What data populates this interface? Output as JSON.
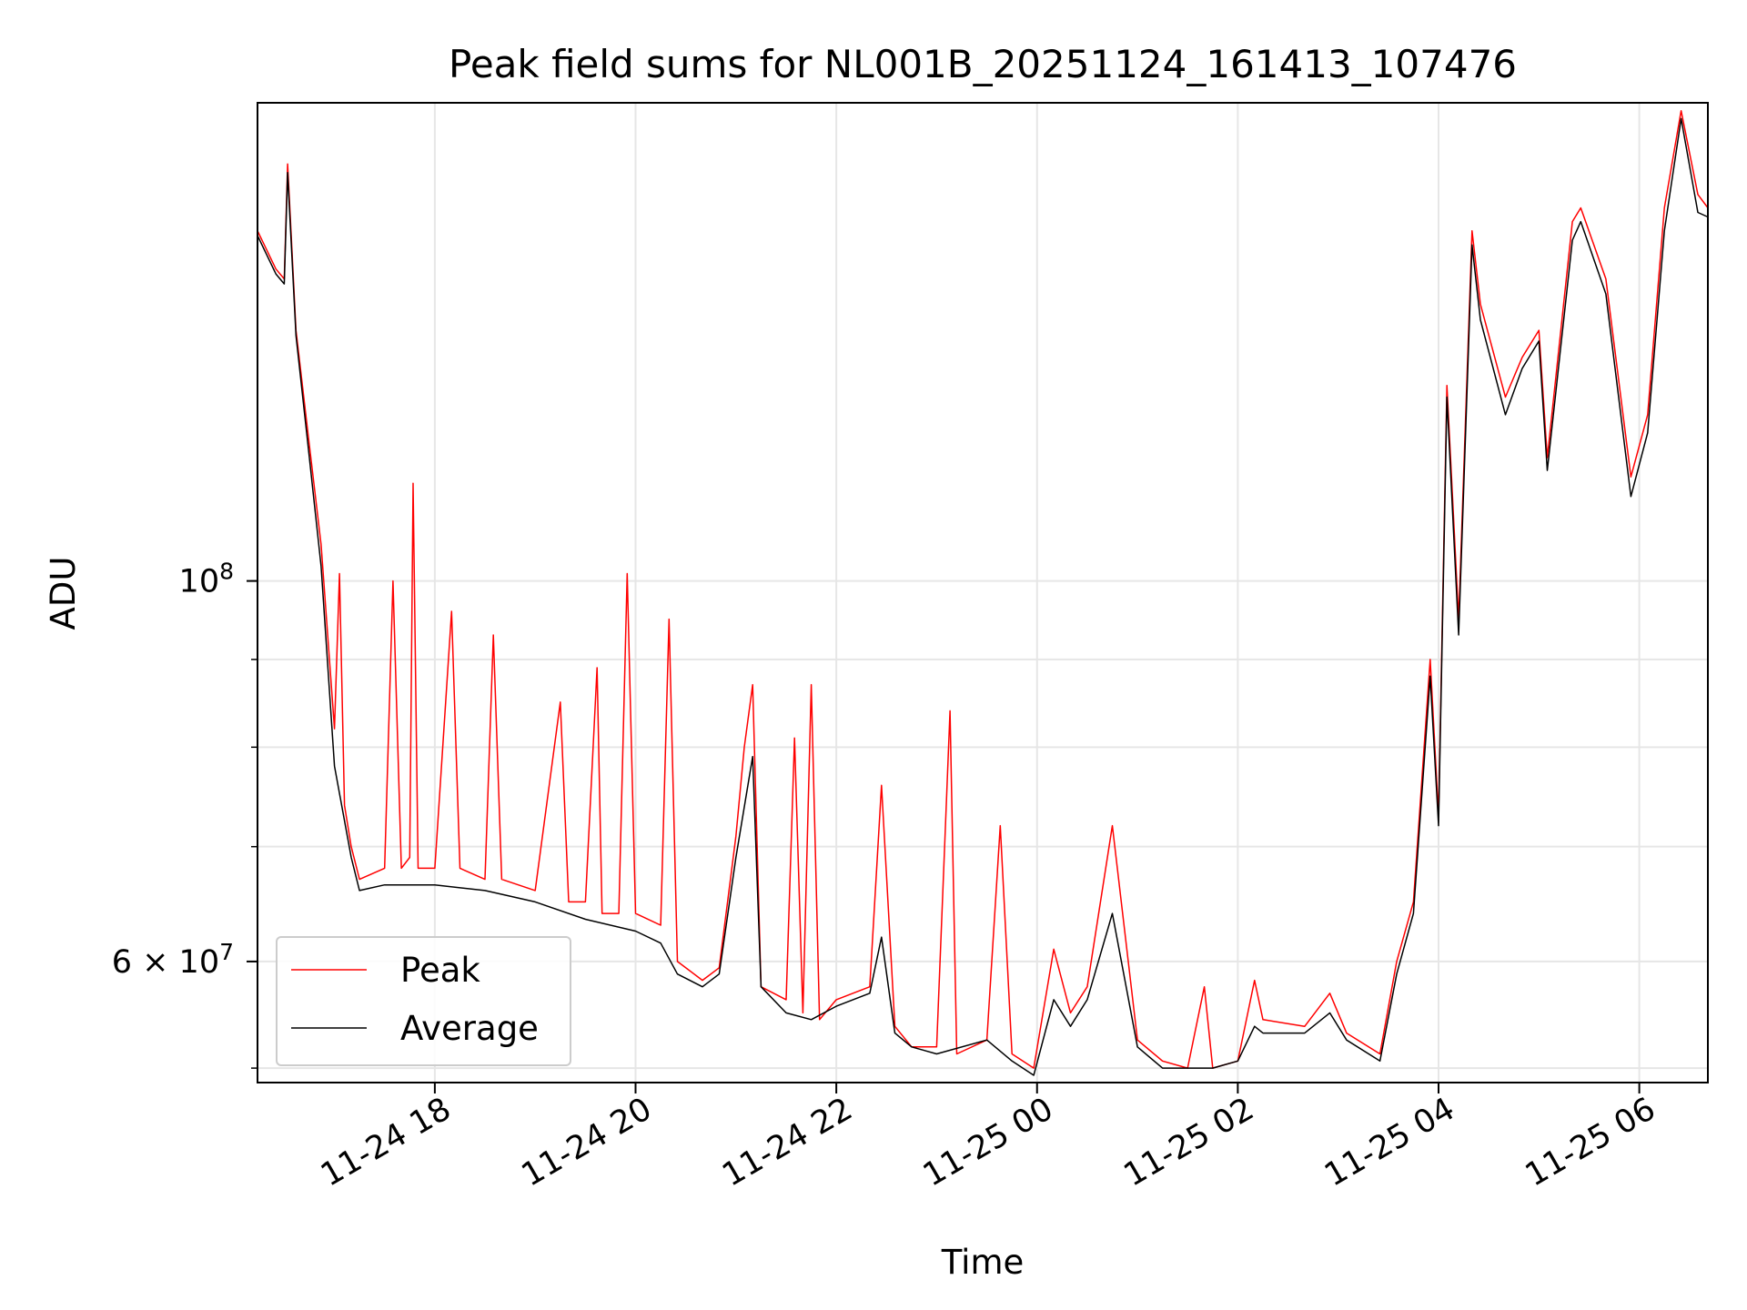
{
  "chart_data": {
    "type": "line",
    "title": "Peak field sums for NL001B_20251124_161413_107476",
    "xlabel": "Time",
    "ylabel": "ADU",
    "y_scale": "log",
    "ylim": [
      51000000,
      190000000
    ],
    "xlim": [
      "2025-11-24 16:14",
      "2025-11-25 06:41"
    ],
    "grid": true,
    "legend_position": "lower-left",
    "x_ticks": [
      {
        "t": "2025-11-24 18:00",
        "label": "11-24 18"
      },
      {
        "t": "2025-11-24 20:00",
        "label": "11-24 20"
      },
      {
        "t": "2025-11-24 22:00",
        "label": "11-24 22"
      },
      {
        "t": "2025-11-25 00:00",
        "label": "11-25 00"
      },
      {
        "t": "2025-11-25 02:00",
        "label": "11-25 02"
      },
      {
        "t": "2025-11-25 04:00",
        "label": "11-25 04"
      },
      {
        "t": "2025-11-25 06:00",
        "label": "11-25 06"
      }
    ],
    "y_major_ticks": [
      {
        "value": 60000000,
        "base": "6 × 10",
        "exp": "7"
      },
      {
        "value": 100000000,
        "base": "10",
        "exp": "8"
      }
    ],
    "y_minor_ticks": [
      52000000,
      60000000,
      70000000,
      80000000,
      90000000,
      100000000
    ],
    "series": [
      {
        "name": "Peak",
        "color": "#ff0000",
        "points": [
          [
            "2025-11-24 16:14",
            160000000
          ],
          [
            "2025-11-24 16:25",
            152000000
          ],
          [
            "2025-11-24 16:30",
            150000000
          ],
          [
            "2025-11-24 16:32",
            175000000
          ],
          [
            "2025-11-24 16:37",
            140000000
          ],
          [
            "2025-11-24 16:45",
            120000000
          ],
          [
            "2025-11-24 16:52",
            105000000
          ],
          [
            "2025-11-24 17:00",
            82000000
          ],
          [
            "2025-11-24 17:03",
            101000000
          ],
          [
            "2025-11-24 17:06",
            74000000
          ],
          [
            "2025-11-24 17:10",
            70000000
          ],
          [
            "2025-11-24 17:15",
            67000000
          ],
          [
            "2025-11-24 17:30",
            68000000
          ],
          [
            "2025-11-24 17:35",
            100000000
          ],
          [
            "2025-11-24 17:40",
            68000000
          ],
          [
            "2025-11-24 17:45",
            69000000
          ],
          [
            "2025-11-24 17:47",
            114000000
          ],
          [
            "2025-11-24 17:50",
            68000000
          ],
          [
            "2025-11-24 18:00",
            68000000
          ],
          [
            "2025-11-24 18:10",
            96000000
          ],
          [
            "2025-11-24 18:15",
            68000000
          ],
          [
            "2025-11-24 18:30",
            67000000
          ],
          [
            "2025-11-24 18:35",
            93000000
          ],
          [
            "2025-11-24 18:40",
            67000000
          ],
          [
            "2025-11-24 19:00",
            66000000
          ],
          [
            "2025-11-24 19:15",
            85000000
          ],
          [
            "2025-11-24 19:20",
            65000000
          ],
          [
            "2025-11-24 19:30",
            65000000
          ],
          [
            "2025-11-24 19:37",
            89000000
          ],
          [
            "2025-11-24 19:40",
            64000000
          ],
          [
            "2025-11-24 19:50",
            64000000
          ],
          [
            "2025-11-24 19:55",
            101000000
          ],
          [
            "2025-11-24 20:00",
            64000000
          ],
          [
            "2025-11-24 20:15",
            63000000
          ],
          [
            "2025-11-24 20:20",
            95000000
          ],
          [
            "2025-11-24 20:25",
            60000000
          ],
          [
            "2025-11-24 20:40",
            58500000
          ],
          [
            "2025-11-24 20:50",
            59500000
          ],
          [
            "2025-11-24 21:00",
            71000000
          ],
          [
            "2025-11-24 21:05",
            80000000
          ],
          [
            "2025-11-24 21:10",
            87000000
          ],
          [
            "2025-11-24 21:15",
            58000000
          ],
          [
            "2025-11-24 21:30",
            57000000
          ],
          [
            "2025-11-24 21:35",
            81000000
          ],
          [
            "2025-11-24 21:40",
            56000000
          ],
          [
            "2025-11-24 21:45",
            87000000
          ],
          [
            "2025-11-24 21:50",
            55500000
          ],
          [
            "2025-11-24 22:00",
            57000000
          ],
          [
            "2025-11-24 22:20",
            58000000
          ],
          [
            "2025-11-24 22:27",
            76000000
          ],
          [
            "2025-11-24 22:35",
            55000000
          ],
          [
            "2025-11-24 22:45",
            53500000
          ],
          [
            "2025-11-24 23:00",
            53500000
          ],
          [
            "2025-11-24 23:08",
            84000000
          ],
          [
            "2025-11-24 23:12",
            53000000
          ],
          [
            "2025-11-24 23:30",
            54000000
          ],
          [
            "2025-11-24 23:38",
            72000000
          ],
          [
            "2025-11-24 23:45",
            53000000
          ],
          [
            "2025-11-24 23:58",
            52000000
          ],
          [
            "2025-11-25 00:10",
            61000000
          ],
          [
            "2025-11-25 00:20",
            56000000
          ],
          [
            "2025-11-25 00:30",
            58000000
          ],
          [
            "2025-11-25 00:45",
            72000000
          ],
          [
            "2025-11-25 01:00",
            54000000
          ],
          [
            "2025-11-25 01:15",
            52500000
          ],
          [
            "2025-11-25 01:30",
            52000000
          ],
          [
            "2025-11-25 01:40",
            58000000
          ],
          [
            "2025-11-25 01:45",
            52000000
          ],
          [
            "2025-11-25 02:00",
            52500000
          ],
          [
            "2025-11-25 02:10",
            58500000
          ],
          [
            "2025-11-25 02:15",
            55500000
          ],
          [
            "2025-11-25 02:40",
            55000000
          ],
          [
            "2025-11-25 02:55",
            57500000
          ],
          [
            "2025-11-25 03:05",
            54500000
          ],
          [
            "2025-11-25 03:25",
            53000000
          ],
          [
            "2025-11-25 03:35",
            60000000
          ],
          [
            "2025-11-25 03:45",
            65000000
          ],
          [
            "2025-11-25 03:55",
            90000000
          ],
          [
            "2025-11-25 04:00",
            73000000
          ],
          [
            "2025-11-25 04:05",
            130000000
          ],
          [
            "2025-11-25 04:12",
            95000000
          ],
          [
            "2025-11-25 04:20",
            160000000
          ],
          [
            "2025-11-25 04:25",
            145000000
          ],
          [
            "2025-11-25 04:40",
            128000000
          ],
          [
            "2025-11-25 04:50",
            135000000
          ],
          [
            "2025-11-25 05:00",
            140000000
          ],
          [
            "2025-11-25 05:05",
            118000000
          ],
          [
            "2025-11-25 05:20",
            162000000
          ],
          [
            "2025-11-25 05:25",
            165000000
          ],
          [
            "2025-11-25 05:40",
            150000000
          ],
          [
            "2025-11-25 05:55",
            115000000
          ],
          [
            "2025-11-25 06:05",
            125000000
          ],
          [
            "2025-11-25 06:15",
            165000000
          ],
          [
            "2025-11-25 06:25",
            188000000
          ],
          [
            "2025-11-25 06:35",
            168000000
          ],
          [
            "2025-11-25 06:41",
            165000000
          ]
        ]
      },
      {
        "name": "Average",
        "color": "#000000",
        "points": [
          [
            "2025-11-24 16:14",
            159000000
          ],
          [
            "2025-11-24 16:25",
            151000000
          ],
          [
            "2025-11-24 16:30",
            149000000
          ],
          [
            "2025-11-24 16:32",
            173000000
          ],
          [
            "2025-11-24 16:37",
            139000000
          ],
          [
            "2025-11-24 16:45",
            118000000
          ],
          [
            "2025-11-24 16:52",
            102000000
          ],
          [
            "2025-11-24 17:00",
            78000000
          ],
          [
            "2025-11-24 17:10",
            69000000
          ],
          [
            "2025-11-24 17:15",
            66000000
          ],
          [
            "2025-11-24 17:30",
            66500000
          ],
          [
            "2025-11-24 18:00",
            66500000
          ],
          [
            "2025-11-24 18:30",
            66000000
          ],
          [
            "2025-11-24 19:00",
            65000000
          ],
          [
            "2025-11-24 19:30",
            63500000
          ],
          [
            "2025-11-24 20:00",
            62500000
          ],
          [
            "2025-11-24 20:15",
            61500000
          ],
          [
            "2025-11-24 20:25",
            59000000
          ],
          [
            "2025-11-24 20:40",
            58000000
          ],
          [
            "2025-11-24 20:50",
            59000000
          ],
          [
            "2025-11-24 21:00",
            69000000
          ],
          [
            "2025-11-24 21:10",
            79000000
          ],
          [
            "2025-11-24 21:15",
            58000000
          ],
          [
            "2025-11-24 21:30",
            56000000
          ],
          [
            "2025-11-24 21:45",
            55500000
          ],
          [
            "2025-11-24 22:00",
            56500000
          ],
          [
            "2025-11-24 22:20",
            57500000
          ],
          [
            "2025-11-24 22:27",
            62000000
          ],
          [
            "2025-11-24 22:35",
            54500000
          ],
          [
            "2025-11-24 22:45",
            53500000
          ],
          [
            "2025-11-24 23:00",
            53000000
          ],
          [
            "2025-11-24 23:30",
            54000000
          ],
          [
            "2025-11-24 23:45",
            52500000
          ],
          [
            "2025-11-24 23:58",
            51500000
          ],
          [
            "2025-11-25 00:10",
            57000000
          ],
          [
            "2025-11-25 00:20",
            55000000
          ],
          [
            "2025-11-25 00:30",
            57000000
          ],
          [
            "2025-11-25 00:45",
            64000000
          ],
          [
            "2025-11-25 01:00",
            53500000
          ],
          [
            "2025-11-25 01:15",
            52000000
          ],
          [
            "2025-11-25 01:30",
            52000000
          ],
          [
            "2025-11-25 01:45",
            52000000
          ],
          [
            "2025-11-25 02:00",
            52500000
          ],
          [
            "2025-11-25 02:10",
            55000000
          ],
          [
            "2025-11-25 02:15",
            54500000
          ],
          [
            "2025-11-25 02:40",
            54500000
          ],
          [
            "2025-11-25 02:55",
            56000000
          ],
          [
            "2025-11-25 03:05",
            54000000
          ],
          [
            "2025-11-25 03:25",
            52500000
          ],
          [
            "2025-11-25 03:35",
            59000000
          ],
          [
            "2025-11-25 03:45",
            64000000
          ],
          [
            "2025-11-25 03:55",
            88000000
          ],
          [
            "2025-11-25 04:00",
            72000000
          ],
          [
            "2025-11-25 04:05",
            128000000
          ],
          [
            "2025-11-25 04:12",
            93000000
          ],
          [
            "2025-11-25 04:20",
            157000000
          ],
          [
            "2025-11-25 04:25",
            142000000
          ],
          [
            "2025-11-25 04:40",
            125000000
          ],
          [
            "2025-11-25 04:50",
            133000000
          ],
          [
            "2025-11-25 05:00",
            138000000
          ],
          [
            "2025-11-25 05:05",
            116000000
          ],
          [
            "2025-11-25 05:20",
            158000000
          ],
          [
            "2025-11-25 05:25",
            162000000
          ],
          [
            "2025-11-25 05:40",
            147000000
          ],
          [
            "2025-11-25 05:55",
            112000000
          ],
          [
            "2025-11-25 06:05",
            122000000
          ],
          [
            "2025-11-25 06:15",
            160000000
          ],
          [
            "2025-11-25 06:25",
            186000000
          ],
          [
            "2025-11-25 06:35",
            164000000
          ],
          [
            "2025-11-25 06:41",
            163000000
          ]
        ]
      }
    ]
  }
}
